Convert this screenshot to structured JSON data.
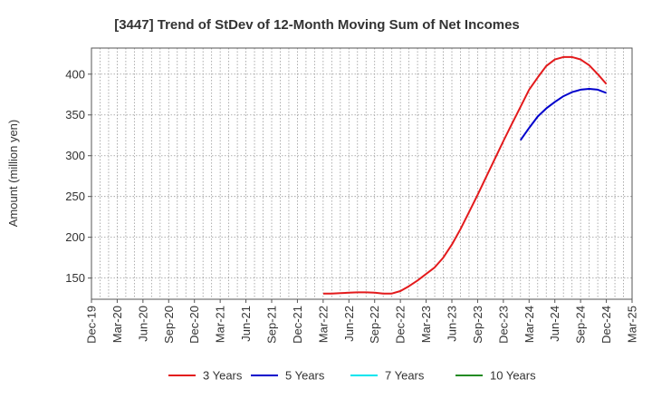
{
  "chart_data": {
    "type": "line",
    "title": "[3447]  Trend of StDev of 12-Month Moving Sum of Net Incomes",
    "xlabel": "",
    "ylabel": "Amount (million yen)",
    "ylim": [
      124,
      432
    ],
    "yticks": [
      150,
      200,
      250,
      300,
      350,
      400
    ],
    "grid": true,
    "legend_position": "bottom",
    "x_ticks": [
      "Dec-19",
      "Mar-20",
      "Jun-20",
      "Sep-20",
      "Dec-20",
      "Mar-21",
      "Jun-21",
      "Sep-21",
      "Dec-21",
      "Mar-22",
      "Jun-22",
      "Sep-22",
      "Dec-22",
      "Mar-23",
      "Jun-23",
      "Sep-23",
      "Dec-23",
      "Mar-24",
      "Jun-24",
      "Sep-24",
      "Dec-24",
      "Mar-25"
    ],
    "series": [
      {
        "name": "3 Years",
        "color": "#e31a1c",
        "x": [
          "Mar-22",
          "Apr-22",
          "May-22",
          "Jun-22",
          "Jul-22",
          "Aug-22",
          "Sep-22",
          "Oct-22",
          "Nov-22",
          "Dec-22",
          "Jan-23",
          "Feb-23",
          "Mar-23",
          "Apr-23",
          "May-23",
          "Jun-23",
          "Jul-23",
          "Aug-23",
          "Sep-23",
          "Oct-23",
          "Nov-23",
          "Dec-23",
          "Jan-24",
          "Feb-24",
          "Mar-24",
          "Apr-24",
          "May-24",
          "Jun-24",
          "Jul-24",
          "Aug-24",
          "Sep-24",
          "Oct-24",
          "Nov-24",
          "Dec-24"
        ],
        "values": [
          131,
          131,
          131.5,
          132,
          132.5,
          132.5,
          132,
          131,
          131,
          134,
          140,
          147,
          155,
          163,
          175,
          191,
          210,
          231,
          252,
          274,
          296,
          318,
          339,
          360,
          381,
          396,
          410,
          418,
          421,
          421,
          418,
          411,
          400,
          388
        ]
      },
      {
        "name": "5 Years",
        "color": "#0000cc",
        "x": [
          "Feb-24",
          "Mar-24",
          "Apr-24",
          "May-24",
          "Jun-24",
          "Jul-24",
          "Aug-24",
          "Sep-24",
          "Oct-24",
          "Nov-24",
          "Dec-24"
        ],
        "values": [
          319,
          334,
          348,
          358,
          366,
          373,
          378,
          381,
          382,
          381,
          377
        ]
      },
      {
        "name": "7 Years",
        "color": "#00e5ee",
        "x": [],
        "values": []
      },
      {
        "name": "10 Years",
        "color": "#228b22",
        "x": [],
        "values": []
      }
    ]
  }
}
